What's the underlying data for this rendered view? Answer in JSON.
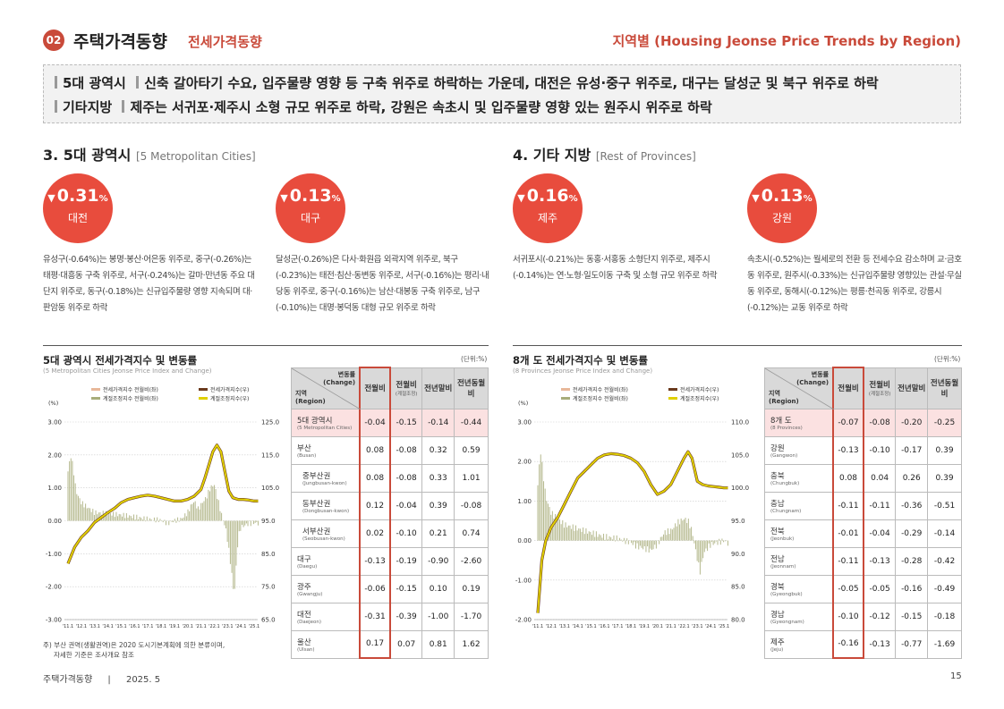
{
  "header": {
    "num": "02",
    "title": "주택가격동향",
    "subtitle": "전세가격동향",
    "right": "지역별 (Housing Jeonse Price Trends by Region)"
  },
  "summary": {
    "line1_tag": "5대 광역시",
    "line1_text": "신축 갈아타기 수요, 입주물량 영향 등 구축 위주로 하락하는 가운데, 대전은 유성·중구 위주로, 대구는 달성군 및 북구 위주로 하락",
    "line2_tag": "기타지방",
    "line2_text": "제주는 서귀포·제주시 소형 규모 위주로 하락, 강원은 속초시 및 입주물량 영향 있는 원주시 위주로 하락"
  },
  "sec3": {
    "title": "3. 5대 광역시",
    "en": "[5 Metropolitan Cities]"
  },
  "sec4": {
    "title": "4. 기타 지방",
    "en": "[Rest of Provinces]"
  },
  "badges": [
    {
      "value": "0.31",
      "unit": "%",
      "region": "대전",
      "desc": "유성구(-0.64%)는 봉명·봉산·어은동 위주로, 중구(-0.26%)는 태평·대흥동 구축 위주로, 서구(-0.24%)는 갈마·만년동 주요 대단지 위주로, 동구(-0.18%)는 신규입주물량 영향 지속되며 대·판암동 위주로 하락"
    },
    {
      "value": "0.13",
      "unit": "%",
      "region": "대구",
      "desc": "달성군(-0.26%)은 다사·화원읍 외곽지역 위주로, 북구(-0.23%)는 태전·침산·동변동 위주로, 서구(-0.16%)는 평리·내당동 위주로, 중구(-0.16%)는 남산·대봉동 구축 위주로, 남구(-0.10%)는 대명·봉덕동 대형 규모 위주로 하락"
    },
    {
      "value": "0.16",
      "unit": "%",
      "region": "제주",
      "desc": "서귀포시(-0.21%)는 동홍·서홍동 소형단지 위주로, 제주시(-0.14%)는 연·노형·일도이동 구축 및 소형 규모 위주로 하락"
    },
    {
      "value": "0.13",
      "unit": "%",
      "region": "강원",
      "desc": "속초시(-0.52%)는 월세로의 전환 등 전세수요 감소하며 교·금호동 위주로, 원주시(-0.33%)는 신규입주물량 영향있는 관설·무실동 위주로, 동해시(-0.12%)는 평릉·천곡동 위주로, 강릉시(-0.12%)는 교동 위주로 하락"
    }
  ],
  "chart_data": [
    {
      "type": "line",
      "title": "5대 광역시 전세가격지수 및 변동률",
      "subtitle": "(5 Metropolitan Cities Jeonse Price Index and Change)",
      "unit": "(단위:%)",
      "ylabel_left": "(%)",
      "left_ticks": [
        "3.00",
        "2.00",
        "1.00",
        "0.00",
        "-1.00",
        "-2.00",
        "-3.00"
      ],
      "right_ticks": [
        "125.0",
        "115.0",
        "105.0",
        "95.0",
        "85.0",
        "75.0",
        "65.0"
      ],
      "ylim_left": [
        -3,
        3
      ],
      "ylim_right": [
        65,
        125
      ],
      "x_ticks": [
        "'11.1",
        "'12.1",
        "'13.1",
        "'14.1",
        "'15.1",
        "'16.1",
        "'17.1",
        "'18.1",
        "'19.1",
        "'20.1",
        "'21.1",
        "'22.1",
        "'23.1",
        "'24.1",
        "'25.1"
      ],
      "legend": [
        "전세가격지수 전월비(좌)",
        "전세가격지수(우)",
        "계절조정지수 전월비(좌)",
        "계절조정지수(우)"
      ],
      "colors": [
        "#e8b89a",
        "#6b3a1e",
        "#a8ad7a",
        "#e0d000"
      ],
      "index_x": [
        0,
        0.5,
        1,
        1.5,
        2,
        2.5,
        3,
        3.5,
        4,
        4.5,
        5,
        5.5,
        6,
        6.5,
        7,
        7.5,
        8,
        8.5,
        9,
        9.5,
        10,
        10.3,
        10.6,
        10.9,
        11.2,
        11.5,
        11.8,
        12.1,
        12.4,
        12.8,
        13.2,
        13.6,
        14,
        14.3
      ],
      "index_values": [
        82,
        87,
        90,
        92,
        94.5,
        96,
        97.5,
        98.8,
        100.5,
        101.5,
        102,
        102.5,
        102.8,
        102.5,
        102,
        101.5,
        101,
        101,
        101.5,
        102.5,
        104.5,
        108,
        112,
        116,
        118,
        116,
        110,
        104,
        102,
        101.5,
        101.5,
        101.3,
        101,
        101
      ],
      "change_x": [
        0,
        0.2,
        0.4,
        0.6,
        1,
        2,
        3,
        4,
        5,
        6,
        7,
        7.5,
        8,
        8.5,
        9,
        9.3,
        9.5,
        9.8,
        10.1,
        10.4,
        10.7,
        11,
        11.3,
        11.6,
        11.9,
        12.2,
        12.5,
        12.8,
        13,
        13.5,
        14,
        14.3
      ],
      "change_values": [
        1.5,
        2.0,
        1.6,
        0.9,
        0.55,
        0.25,
        0.22,
        0.18,
        0.12,
        0.05,
        0.02,
        -0.08,
        0.0,
        0.05,
        0.25,
        0.5,
        0.6,
        0.35,
        0.55,
        0.7,
        1.0,
        1.1,
        0.6,
        0.1,
        -0.3,
        -1.2,
        -2.3,
        -0.5,
        -0.2,
        -0.1,
        -0.06,
        -0.08
      ]
    },
    {
      "type": "line",
      "title": "8개 도 전세가격지수 및 변동률",
      "subtitle": "(8 Provinces Jeonse Price Index and Change)",
      "unit": "(단위:%)",
      "ylabel_left": "(%)",
      "left_ticks": [
        "3.00",
        "2.00",
        "1.00",
        "0.00",
        "-1.00",
        "-2.00"
      ],
      "right_ticks": [
        "110.0",
        "105.0",
        "100.0",
        "95.0",
        "90.0",
        "85.0",
        "80.0"
      ],
      "ylim_left": [
        -2,
        3
      ],
      "ylim_right": [
        80,
        110
      ],
      "x_ticks": [
        "'11.1",
        "'12.1",
        "'13.1",
        "'14.1",
        "'15.1",
        "'16.1",
        "'17.1",
        "'18.1",
        "'19.1",
        "'20.1",
        "'21.1",
        "'22.1",
        "'23.1",
        "'24.1",
        "'25.1"
      ],
      "legend": [
        "전세가격지수 전월비(좌)",
        "전세가격지수(우)",
        "계절조정지수 전월비(좌)",
        "계절조정지수(우)"
      ],
      "colors": [
        "#e8b89a",
        "#6b3a1e",
        "#a8ad7a",
        "#e0d000"
      ],
      "index_x": [
        0,
        0.3,
        0.6,
        1,
        1.5,
        2,
        2.5,
        3,
        3.5,
        4,
        4.5,
        5,
        5.5,
        6,
        6.5,
        7,
        7.5,
        8,
        8.5,
        9,
        9.5,
        10,
        10.5,
        11,
        11.3,
        11.6,
        12,
        12.4,
        12.8,
        13.2,
        13.6,
        14,
        14.3
      ],
      "index_values": [
        81,
        89,
        92,
        94,
        95.5,
        97.5,
        99.5,
        101.5,
        102.5,
        103.5,
        104.5,
        105,
        105.2,
        105.1,
        104.9,
        104.5,
        103.8,
        102.5,
        100.5,
        99,
        99.5,
        100.5,
        102.5,
        104.5,
        105.5,
        104.5,
        101,
        100.5,
        100.3,
        100.2,
        100.1,
        100,
        100
      ],
      "change_x": [
        0,
        0.2,
        0.4,
        0.6,
        1,
        2,
        3,
        4,
        5,
        6,
        7,
        7.5,
        8,
        8.5,
        9,
        9.5,
        10,
        10.5,
        11,
        11.3,
        11.6,
        11.9,
        12.2,
        12.5,
        13,
        13.5,
        14,
        14.3
      ],
      "change_values": [
        1.4,
        2.3,
        1.7,
        1.1,
        0.7,
        0.4,
        0.3,
        0.2,
        0.1,
        0.05,
        -0.05,
        -0.15,
        -0.2,
        -0.25,
        -0.1,
        0.2,
        0.25,
        0.45,
        0.55,
        0.5,
        0.25,
        -0.3,
        -0.8,
        -0.3,
        -0.1,
        -0.05,
        0.0,
        -0.07
      ]
    }
  ],
  "table1": {
    "header": {
      "diag_top": "변동률",
      "diag_top2": "(Change)",
      "diag_bottom": "지역",
      "diag_bottom2": "(Region)",
      "c1": "전월비",
      "c2": "전월비",
      "c2s": "(계절조정)",
      "c3": "전년말비",
      "c4": "전년동월비"
    },
    "rows": [
      {
        "name": "5대 광역시",
        "en": "(5 Metropolitan Cities)",
        "v": [
          "-0.04",
          "-0.15",
          "-0.14",
          "-0.44"
        ],
        "hl": true,
        "ind": false
      },
      {
        "name": "부산",
        "en": "(Busan)",
        "v": [
          "0.08",
          "-0.08",
          "0.32",
          "0.59"
        ],
        "hl": false,
        "ind": false
      },
      {
        "name": "중부산권",
        "en": "(Jungbusan-kwon)",
        "v": [
          "0.08",
          "-0.08",
          "0.33",
          "1.01"
        ],
        "hl": false,
        "ind": true
      },
      {
        "name": "동부산권",
        "en": "(Dongbusan-kwon)",
        "v": [
          "0.12",
          "-0.04",
          "0.39",
          "-0.08"
        ],
        "hl": false,
        "ind": true
      },
      {
        "name": "서부산권",
        "en": "(Seobusan-kwon)",
        "v": [
          "0.02",
          "-0.10",
          "0.21",
          "0.74"
        ],
        "hl": false,
        "ind": true
      },
      {
        "name": "대구",
        "en": "(Daegu)",
        "v": [
          "-0.13",
          "-0.19",
          "-0.90",
          "-2.60"
        ],
        "hl": false,
        "ind": false
      },
      {
        "name": "광주",
        "en": "(Gwangju)",
        "v": [
          "-0.06",
          "-0.15",
          "0.10",
          "0.19"
        ],
        "hl": false,
        "ind": false
      },
      {
        "name": "대전",
        "en": "(Daejeon)",
        "v": [
          "-0.31",
          "-0.39",
          "-1.00",
          "-1.70"
        ],
        "hl": false,
        "ind": false
      },
      {
        "name": "울산",
        "en": "(Ulsan)",
        "v": [
          "0.17",
          "0.07",
          "0.81",
          "1.62"
        ],
        "hl": false,
        "ind": false
      }
    ],
    "note1": "주) 부산 권역(생활권역)은 2020 도시기본계획에 의한 분류이며,",
    "note2": "자세한 기준은 조사개요 참조"
  },
  "table2": {
    "header": {
      "diag_top": "변동률",
      "diag_top2": "(Change)",
      "diag_bottom": "지역",
      "diag_bottom2": "(Region)",
      "c1": "전월비",
      "c2": "전월비",
      "c2s": "(계절조정)",
      "c3": "전년말비",
      "c4": "전년동월비"
    },
    "rows": [
      {
        "name": "8개 도",
        "en": "(8 Provinces)",
        "v": [
          "-0.07",
          "-0.08",
          "-0.20",
          "-0.25"
        ],
        "hl": true,
        "ind": false
      },
      {
        "name": "강원",
        "en": "(Gangwon)",
        "v": [
          "-0.13",
          "-0.10",
          "-0.17",
          "0.39"
        ],
        "hl": false,
        "ind": false
      },
      {
        "name": "충북",
        "en": "(Chungbuk)",
        "v": [
          "0.08",
          "0.04",
          "0.26",
          "0.39"
        ],
        "hl": false,
        "ind": false
      },
      {
        "name": "충남",
        "en": "(Chungnam)",
        "v": [
          "-0.11",
          "-0.11",
          "-0.36",
          "-0.51"
        ],
        "hl": false,
        "ind": false
      },
      {
        "name": "전북",
        "en": "(Jeonbuk)",
        "v": [
          "-0.01",
          "-0.04",
          "-0.29",
          "-0.14"
        ],
        "hl": false,
        "ind": false
      },
      {
        "name": "전남",
        "en": "(Jeonnam)",
        "v": [
          "-0.11",
          "-0.13",
          "-0.28",
          "-0.42"
        ],
        "hl": false,
        "ind": false
      },
      {
        "name": "경북",
        "en": "(Gyeongbuk)",
        "v": [
          "-0.05",
          "-0.05",
          "-0.16",
          "-0.49"
        ],
        "hl": false,
        "ind": false
      },
      {
        "name": "경남",
        "en": "(Gyeongnam)",
        "v": [
          "-0.10",
          "-0.12",
          "-0.15",
          "-0.18"
        ],
        "hl": false,
        "ind": false
      },
      {
        "name": "제주",
        "en": "(Jeju)",
        "v": [
          "-0.16",
          "-0.13",
          "-0.77",
          "-1.69"
        ],
        "hl": false,
        "ind": false
      }
    ]
  },
  "footer": {
    "left": "주택가격동향",
    "sep": "|",
    "date": "2025. 5",
    "page": "15"
  }
}
